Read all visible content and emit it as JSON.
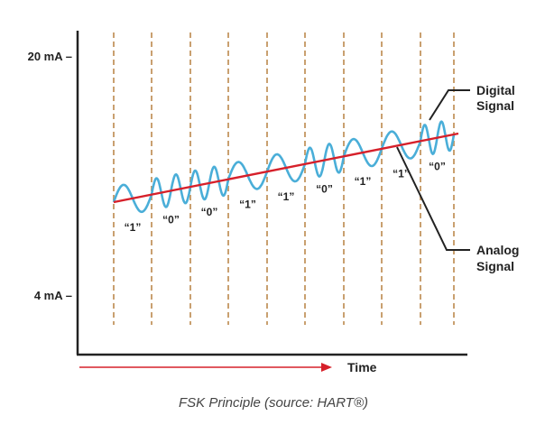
{
  "diagram": {
    "y_ticks": [
      {
        "label": "20 mA –"
      },
      {
        "label": "4 mA –"
      }
    ],
    "x_axis_label": "Time",
    "bits": [
      "1",
      "0",
      "0",
      "1",
      "1",
      "0",
      "1",
      "1",
      "0"
    ],
    "bit_labels": [
      "“1”",
      "“0”",
      "“0”",
      "“1”",
      "“1”",
      "“0”",
      "“1”",
      "“1”",
      "“0”"
    ],
    "callouts": {
      "digital": [
        "Digital",
        "Signal"
      ],
      "analog": [
        "Analog",
        "Signal"
      ]
    },
    "caption": "FSK Principle (source: HART®)",
    "colors": {
      "digital_wave": "#4aaed8",
      "analog_line": "#d6202a",
      "bit_dividers": "#c9a070",
      "axes": "#222222",
      "time_arrow": "#d6202a"
    }
  }
}
